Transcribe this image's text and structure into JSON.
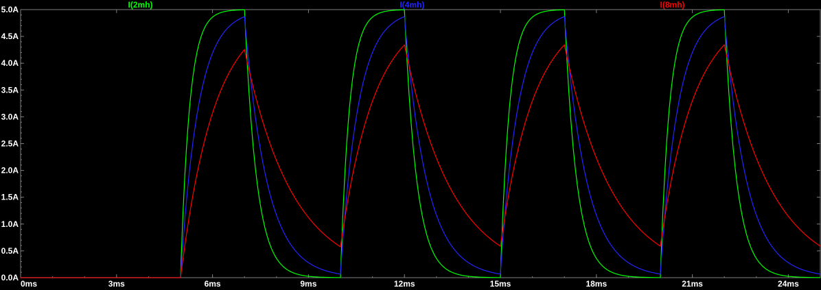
{
  "chart_data": {
    "type": "line",
    "title": "",
    "xlabel": "",
    "ylabel": "",
    "x_unit": "ms",
    "y_unit": "A",
    "xlim": [
      0,
      25
    ],
    "ylim": [
      0,
      5
    ],
    "grid": false,
    "legend_position": "top",
    "background_color": "#000000",
    "axis_color": "#808080",
    "text_color": "#ffffff",
    "x_tick_step_ms": 3,
    "x_minor_step_ms": 1,
    "y_tick_step": 0.5,
    "y_minor_step": 0.1,
    "x_ticks": [
      "0ms",
      "3ms",
      "6ms",
      "9ms",
      "12ms",
      "15ms",
      "18ms",
      "21ms",
      "24ms"
    ],
    "y_ticks": [
      "0.0A",
      "0.5A",
      "1.0A",
      "1.5A",
      "2.0A",
      "2.5A",
      "3.0A",
      "3.5A",
      "4.0A",
      "4.5A",
      "5.0A"
    ],
    "series": [
      {
        "name": "I(2mh)",
        "color": "#00ff00",
        "rise_tau_ms": 0.28,
        "fall_tau_ms": 0.38,
        "peak_A": 5.0,
        "trough_A": 0.0,
        "label_x_pct": 17.1
      },
      {
        "name": "I(4mh)",
        "color": "#2424ff",
        "rise_tau_ms": 0.55,
        "fall_tau_ms": 0.7,
        "peak_A": 4.87,
        "trough_A": 0.05,
        "label_x_pct": 50.2
      },
      {
        "name": "I(8mh)",
        "color": "#ff0000",
        "rise_tau_ms": 1.05,
        "fall_tau_ms": 1.5,
        "peak_A": 4.34,
        "trough_A": 0.59,
        "label_x_pct": 81.9
      }
    ],
    "drive_pulse": {
      "start_ms": 5.0,
      "on_ms": 2.0,
      "period_ms": 5.0,
      "amplitude_A": 5.0
    }
  }
}
